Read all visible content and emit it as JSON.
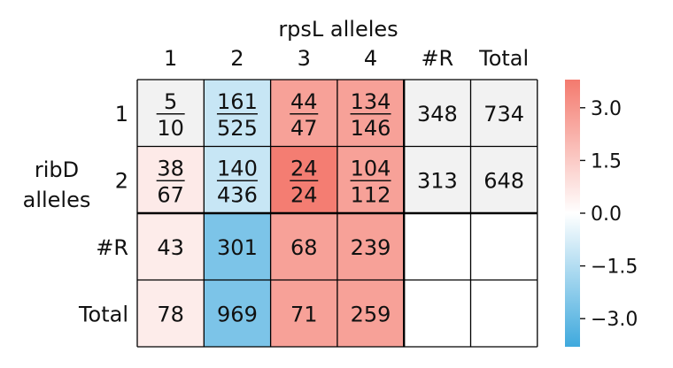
{
  "chart_data": {
    "type": "heatmap",
    "title": "",
    "col_axis_label": "rpsL alleles",
    "row_axis_label": [
      "ribD",
      "alleles"
    ],
    "columns": [
      "1",
      "2",
      "3",
      "4",
      "#R",
      "Total"
    ],
    "rows": [
      "1",
      "2",
      "#R",
      "Total"
    ],
    "cells": [
      [
        {
          "num": "5",
          "den": "10",
          "score": 0.0
        },
        {
          "num": "161",
          "den": "525",
          "score": -1.1
        },
        {
          "num": "44",
          "den": "47",
          "score": 2.7
        },
        {
          "num": "134",
          "den": "146",
          "score": 2.7
        },
        {
          "text": "348",
          "score": 0.0
        },
        {
          "text": "734",
          "score": 0.0
        }
      ],
      [
        {
          "num": "38",
          "den": "67",
          "score": 0.6
        },
        {
          "num": "140",
          "den": "436",
          "score": -1.1
        },
        {
          "num": "24",
          "den": "24",
          "score": 3.7
        },
        {
          "num": "104",
          "den": "112",
          "score": 2.7
        },
        {
          "text": "313",
          "score": 0.0
        },
        {
          "text": "648",
          "score": 0.0
        }
      ],
      [
        {
          "text": "43",
          "score": 0.55
        },
        {
          "text": "301",
          "score": -2.6
        },
        {
          "text": "68",
          "score": 2.7
        },
        {
          "text": "239",
          "score": 2.7
        },
        {
          "text": "",
          "score": null
        },
        {
          "text": "",
          "score": null
        }
      ],
      [
        {
          "text": "78",
          "score": 0.55
        },
        {
          "text": "969",
          "score": -2.6
        },
        {
          "text": "71",
          "score": 2.7
        },
        {
          "text": "259",
          "score": 2.7
        },
        {
          "text": "",
          "score": null
        },
        {
          "text": "",
          "score": null
        }
      ]
    ],
    "colorbar": {
      "range": [
        -3.8,
        3.8
      ],
      "ticks": [
        3.0,
        1.5,
        0.0,
        -1.5,
        -3.0
      ],
      "tick_labels": [
        "3.0",
        "1.5",
        "0.0",
        "−1.5",
        "−3.0"
      ],
      "colors": {
        "negative": "#3fa9dd",
        "zero": "#ffffff",
        "positive": "#f47a6e"
      }
    },
    "neutral_color": "#f2f2f2",
    "grid": true,
    "legend": "colorbar-right"
  }
}
